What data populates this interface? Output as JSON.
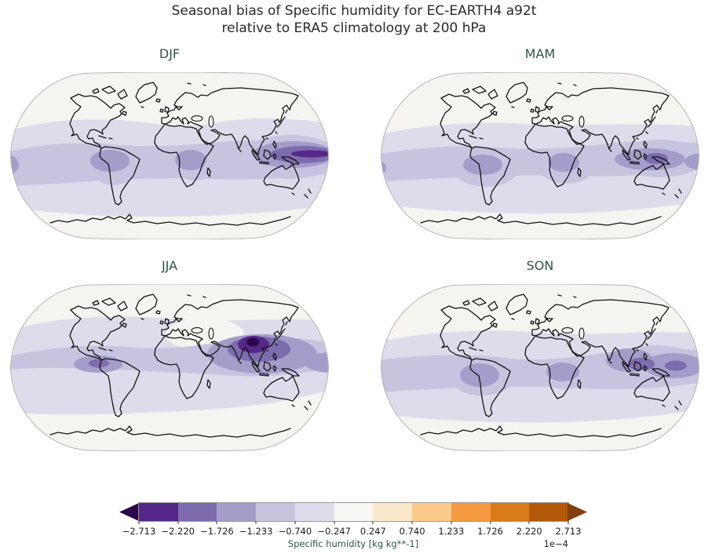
{
  "header": {
    "line1": "Seasonal bias of Specific humidity for EC-EARTH4 a92t",
    "line2": "relative to ERA5 climatology at 200 hPa"
  },
  "colors": {
    "teal": "#2f544b",
    "map_bg": "#f5f4f1",
    "map_edge": "#b8b6b2",
    "coast": "#141414",
    "l1": "#dedceb",
    "l2": "#c7c4e0",
    "l3": "#a49cc9",
    "l4": "#7c6bad",
    "l5": "#542788",
    "l6": "#2d054b",
    "under": "#2d054b",
    "over": "#81400c"
  },
  "chart_data": {
    "type": "heatmap",
    "subtype": "filled_contour_world_maps",
    "projection": "Robinson",
    "title": "Seasonal bias of Specific humidity for EC-EARTH4 a92t relative to ERA5 climatology at 200 hPa",
    "variable": "Specific humidity bias (EC-EARTH4 a92t minus ERA5 climatology) at 200 hPa",
    "panels": [
      {
        "label": "DJF",
        "pattern": "Negative bias band over tropics/subtropics of both hemispheres (~ -0.5e-4); moderate cores (~ -1.0e-4) over tropical South America, southern Africa and eastern equatorial Pacific; strongest bias (-1.5 to -2.2e-4) over the Maritime Continent and western Pacific; near zero poleward of ~45N and ~50S."
      },
      {
        "label": "MAM",
        "pattern": "Broad weak negative band between ~35N and ~45S (~ -0.5e-4); moderate cores (~ -1.0 to -1.5e-4) over Amazonia, central Africa and Indonesia/western Pacific; near zero at high latitudes."
      },
      {
        "label": "JJA",
        "pattern": "Strongest seasonal bias: deep negative core (< -2.2e-4, locally < -2.7e-4) over India/Tibetan Plateau and Southeast Asia extending across the North Pacific; negative band over most northern mid-latitudes; secondary core over Central America/Caribbean; near zero over eastern Mediterranean/Middle East and southern extratropics."
      },
      {
        "label": "SON",
        "pattern": "Negative bands in both hemispheres (~ -0.5e-4); moderate cores (~ -1.0 to -1.7e-4) over northern South America, central Africa and South/Southeast Asia into the western Pacific."
      }
    ],
    "colorbar": {
      "label": "Specific humidity [kg kg**-1]",
      "scale_label": "1e−4",
      "scale_factor": 0.0001,
      "extend": "both",
      "colormap": "PuOr reversed, 11 discrete intervals",
      "tick_labels": [
        "−2.713",
        "−2.220",
        "−1.726",
        "−1.233",
        "−0.740",
        "−0.247",
        "0.247",
        "0.740",
        "1.233",
        "1.726",
        "2.220",
        "2.713"
      ],
      "tick_values_e4": [
        -2.713,
        -2.22,
        -1.726,
        -1.233,
        -0.74,
        -0.247,
        0.247,
        0.74,
        1.233,
        1.726,
        2.22,
        2.713
      ],
      "segment_colors": [
        "#542788",
        "#7c6bad",
        "#a49cc9",
        "#c7c4e0",
        "#dedceb",
        "#f7f6f2",
        "#fce8ca",
        "#fdc98a",
        "#f49b41",
        "#d97c19",
        "#b25909"
      ],
      "under_color": "#2d054b",
      "over_color": "#81400c"
    }
  }
}
